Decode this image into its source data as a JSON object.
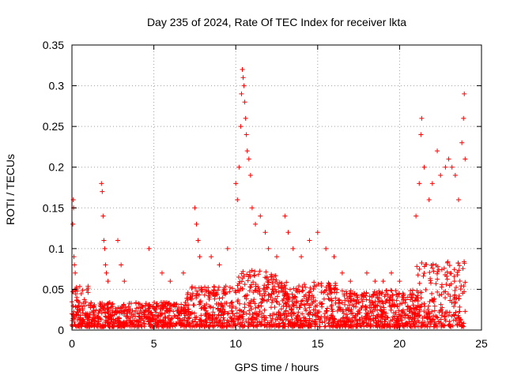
{
  "chart_data": {
    "type": "scatter",
    "title": "Day 235 of 2024, Rate Of TEC Index for receiver lkta",
    "xlabel": "GPS time / hours",
    "ylabel": "ROTI / TECUs",
    "xlim": [
      0,
      25
    ],
    "ylim": [
      0,
      0.35
    ],
    "xticks": [
      0,
      5,
      10,
      15,
      20,
      25
    ],
    "yticks": [
      0,
      0.05,
      0.1,
      0.15,
      0.2,
      0.25,
      0.3,
      0.35
    ],
    "xtick_labels": [
      "0",
      "5",
      "10",
      "15",
      "20",
      "25"
    ],
    "ytick_labels": [
      "0",
      "0.05",
      "0.1",
      "0.15",
      "0.2",
      "0.25",
      "0.3",
      "0.35"
    ],
    "grid": true,
    "marker": "+",
    "color": "#ff0000",
    "x_data_range": [
      0,
      24
    ],
    "series": [
      {
        "name": "ROTI",
        "points": [
          [
            0.0,
            0.02
          ],
          [
            0.05,
            0.13
          ],
          [
            0.08,
            0.16
          ],
          [
            0.1,
            0.15
          ],
          [
            0.12,
            0.09
          ],
          [
            0.15,
            0.08
          ],
          [
            0.2,
            0.07
          ],
          [
            0.25,
            0.05
          ],
          [
            0.3,
            0.04
          ],
          [
            0.4,
            0.03
          ],
          [
            1.8,
            0.18
          ],
          [
            1.85,
            0.17
          ],
          [
            1.9,
            0.14
          ],
          [
            1.95,
            0.11
          ],
          [
            2.0,
            0.1
          ],
          [
            2.05,
            0.08
          ],
          [
            2.1,
            0.07
          ],
          [
            2.2,
            0.06
          ],
          [
            2.8,
            0.11
          ],
          [
            3.0,
            0.08
          ],
          [
            3.2,
            0.06
          ],
          [
            4.7,
            0.1
          ],
          [
            5.5,
            0.07
          ],
          [
            6.0,
            0.06
          ],
          [
            6.8,
            0.07
          ],
          [
            7.5,
            0.15
          ],
          [
            7.6,
            0.13
          ],
          [
            7.7,
            0.11
          ],
          [
            7.8,
            0.09
          ],
          [
            8.5,
            0.09
          ],
          [
            9.0,
            0.08
          ],
          [
            9.5,
            0.1
          ],
          [
            10.0,
            0.18
          ],
          [
            10.1,
            0.16
          ],
          [
            10.2,
            0.2
          ],
          [
            10.3,
            0.25
          ],
          [
            10.35,
            0.29
          ],
          [
            10.4,
            0.32
          ],
          [
            10.45,
            0.31
          ],
          [
            10.5,
            0.3
          ],
          [
            10.55,
            0.28
          ],
          [
            10.6,
            0.26
          ],
          [
            10.65,
            0.24
          ],
          [
            10.7,
            0.22
          ],
          [
            10.8,
            0.21
          ],
          [
            10.9,
            0.19
          ],
          [
            11.0,
            0.15
          ],
          [
            11.2,
            0.13
          ],
          [
            11.5,
            0.14
          ],
          [
            11.8,
            0.12
          ],
          [
            12.0,
            0.1
          ],
          [
            12.5,
            0.09
          ],
          [
            13.0,
            0.14
          ],
          [
            13.2,
            0.12
          ],
          [
            13.5,
            0.1
          ],
          [
            14.0,
            0.09
          ],
          [
            14.5,
            0.11
          ],
          [
            15.0,
            0.12
          ],
          [
            15.5,
            0.1
          ],
          [
            16.0,
            0.09
          ],
          [
            16.5,
            0.07
          ],
          [
            17.0,
            0.06
          ],
          [
            18.0,
            0.07
          ],
          [
            18.5,
            0.06
          ],
          [
            19.0,
            0.06
          ],
          [
            19.5,
            0.07
          ],
          [
            20.0,
            0.06
          ],
          [
            21.0,
            0.14
          ],
          [
            21.2,
            0.18
          ],
          [
            21.3,
            0.24
          ],
          [
            21.35,
            0.26
          ],
          [
            21.5,
            0.2
          ],
          [
            21.8,
            0.16
          ],
          [
            22.0,
            0.18
          ],
          [
            22.3,
            0.22
          ],
          [
            22.5,
            0.19
          ],
          [
            22.8,
            0.2
          ],
          [
            23.0,
            0.21
          ],
          [
            23.2,
            0.2
          ],
          [
            23.4,
            0.19
          ],
          [
            23.6,
            0.16
          ],
          [
            23.8,
            0.23
          ],
          [
            23.9,
            0.26
          ],
          [
            23.95,
            0.29
          ],
          [
            24.0,
            0.21
          ]
        ]
      }
    ]
  }
}
